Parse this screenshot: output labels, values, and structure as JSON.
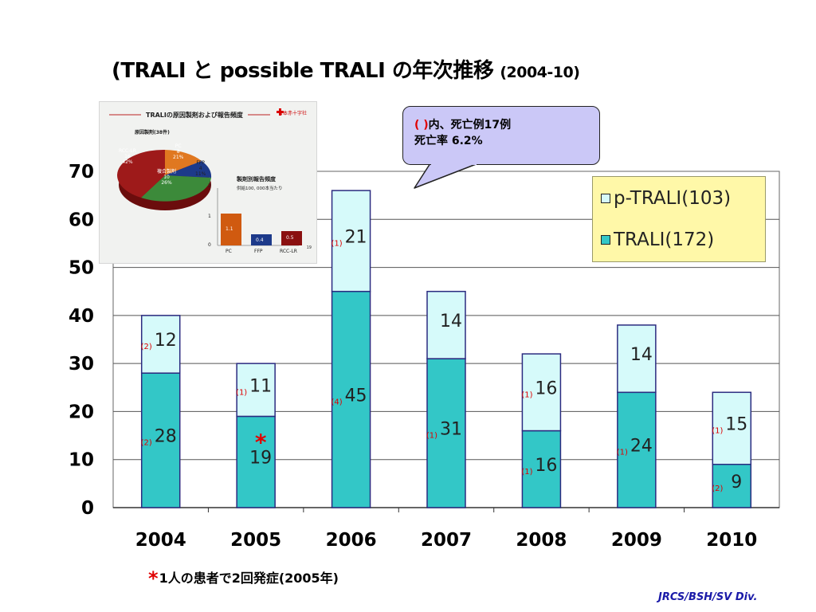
{
  "title": {
    "main": "(TRALI と possible TRALI の年次推移",
    "sub": "(2004-10)"
  },
  "callout": {
    "line1_paren": "(  )",
    "line1": "内、死亡例17例",
    "line2": "死亡率  6.2%"
  },
  "legend": {
    "p_trali": "p-TRALI(103)",
    "trali": "TRALI(172)"
  },
  "colors": {
    "trali": "#33c7c7",
    "p_trali": "#d6fafa",
    "bar_border": "#2b2b80",
    "death_marker": "#e00000",
    "legend_bg": "#fff8a8",
    "callout_bg": "#cbc8f7"
  },
  "chart_data": {
    "type": "bar",
    "stacked": true,
    "categories": [
      "2004",
      "2005",
      "2006",
      "2007",
      "2008",
      "2009",
      "2010"
    ],
    "series": [
      {
        "name": "TRALI(172)",
        "values": [
          28,
          19,
          45,
          31,
          16,
          24,
          9
        ],
        "deaths": [
          "(2)",
          "",
          "(4)",
          "(1)",
          "(1)",
          "(1)",
          "(2)"
        ]
      },
      {
        "name": "p-TRALI(103)",
        "values": [
          12,
          11,
          21,
          14,
          16,
          14,
          15
        ],
        "deaths": [
          "(2)",
          "(1)",
          "(1)",
          "",
          "(1)",
          "",
          "(1)"
        ]
      }
    ],
    "ylim": [
      0,
      70
    ],
    "yticks": [
      0,
      10,
      20,
      30,
      40,
      50,
      60,
      70
    ],
    "grid": true,
    "legend_position": "top-right",
    "annotations": [
      {
        "category": "2005",
        "series": "TRALI(172)",
        "text": "*"
      }
    ]
  },
  "inset": {
    "title": "TRALIの原因製剤および報告頻度",
    "logo": "日本赤十字社",
    "pie_subtitle": "原因製剤(38件)",
    "pie": [
      {
        "label": "RCC-LR",
        "count": "16",
        "pct": "42%"
      },
      {
        "label": "PC",
        "count": "8",
        "pct": "21%"
      },
      {
        "label": "FFP",
        "count": "4",
        "pct": "11%"
      },
      {
        "label": "複合製剤",
        "count": "10",
        "pct": "26%"
      }
    ],
    "bar_title": "製剤別報告頻度",
    "bar_subtitle": "供給100, 000本当たり",
    "bar_yticks": [
      "0",
      "1",
      "2"
    ],
    "bars": [
      {
        "label": "PC",
        "value": 1.1,
        "text": "1.1"
      },
      {
        "label": "FFP",
        "value": 0.4,
        "text": "0.4"
      },
      {
        "label": "RCC-LR",
        "value": 0.5,
        "text": "0.5"
      }
    ],
    "page": "19"
  },
  "footnote": {
    "star": "*",
    "text": "1人の患者で2回発症(2005年)"
  },
  "credit": "JRCS/BSH/SV Div."
}
